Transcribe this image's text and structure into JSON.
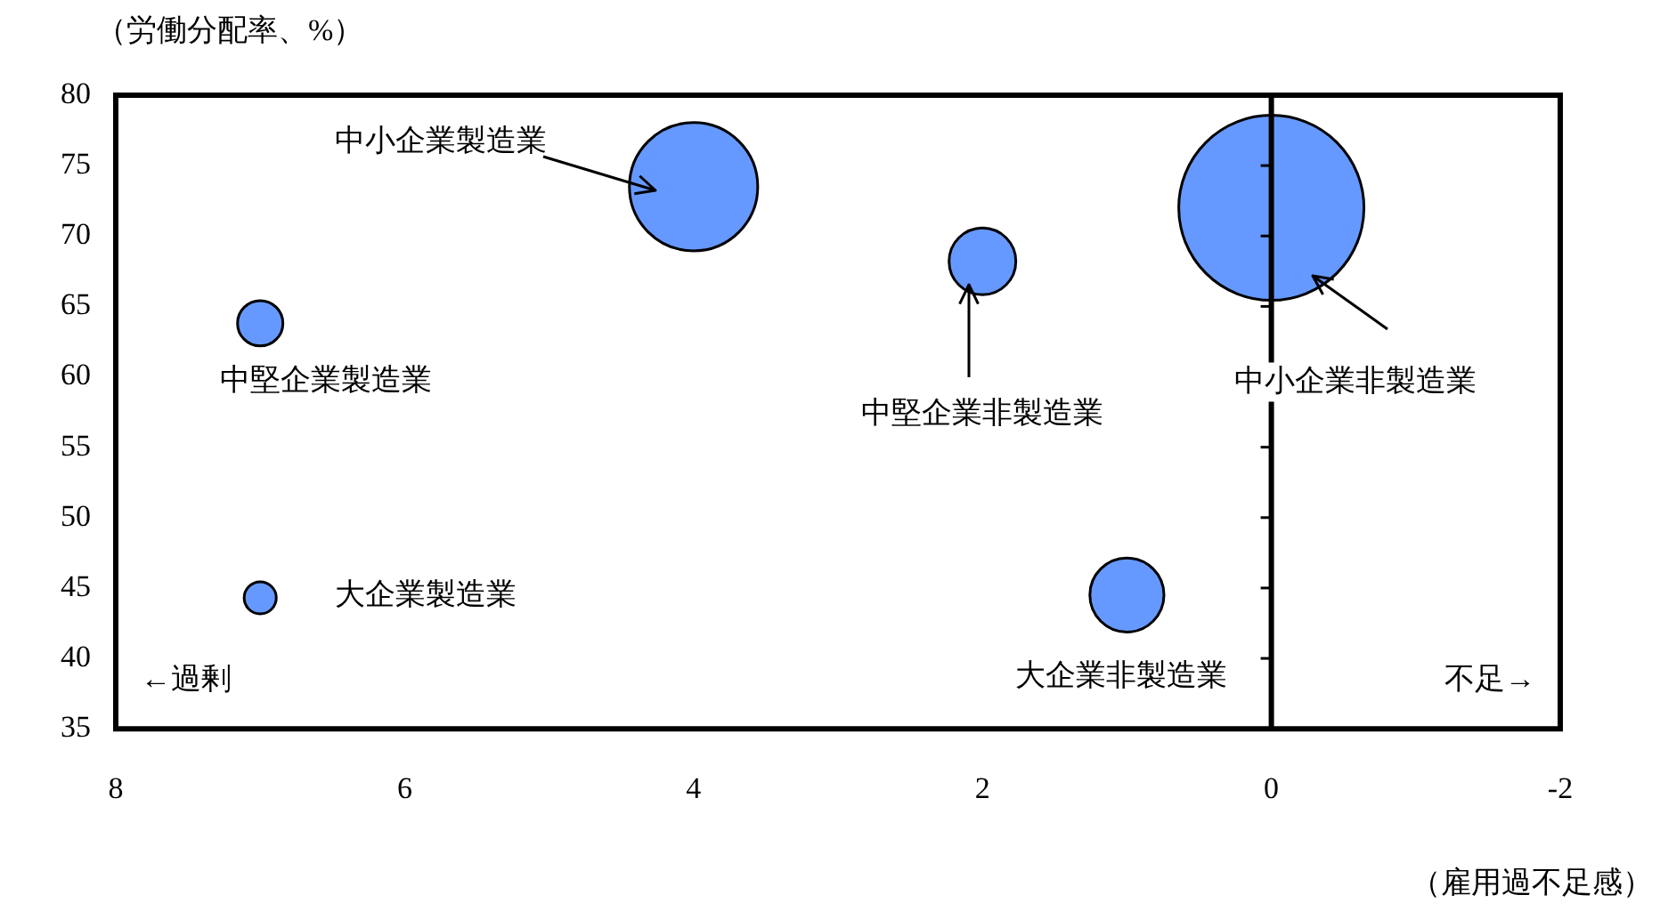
{
  "chart_data": {
    "type": "bubble",
    "xlabel": "（雇用過不足感）",
    "ylabel": "（労働分配率、%）",
    "annotations": [
      "←過剰",
      "不足→"
    ],
    "xlim": [
      8,
      -2
    ],
    "xticks": [
      8,
      6,
      4,
      2,
      0,
      -2
    ],
    "ylim": [
      35,
      80
    ],
    "yticks": [
      35,
      40,
      45,
      50,
      55,
      60,
      65,
      70,
      75,
      80
    ],
    "ref_lines": [
      {
        "axis": "x",
        "value": 0,
        "color": "#000000"
      }
    ],
    "series": [
      {
        "name": "中小企業製造業",
        "color": "#6699ff",
        "x": [
          4.0
        ],
        "values": [
          73.5
        ],
        "sizes": [
          0.48
        ]
      },
      {
        "name": "中堅企業製造業",
        "color": "#6699ff",
        "x": [
          7.0
        ],
        "values": [
          63.8
        ],
        "sizes": [
          0.06
        ]
      },
      {
        "name": "大企業製造業",
        "color": "#6699ff",
        "x": [
          7.0
        ],
        "values": [
          44.3
        ],
        "sizes": [
          0.03
        ]
      },
      {
        "name": "中堅企業非製造業",
        "color": "#6699ff",
        "x": [
          2.0
        ],
        "values": [
          68.2
        ],
        "sizes": [
          0.13
        ]
      },
      {
        "name": "中小企業非製造業",
        "color": "#6699ff",
        "x": [
          0.0
        ],
        "values": [
          72.0
        ],
        "sizes": [
          1
        ]
      },
      {
        "name": "大企業非製造業",
        "color": "#6699ff",
        "x": [
          1.0
        ],
        "values": [
          44.5
        ],
        "sizes": [
          0.16
        ]
      }
    ]
  }
}
